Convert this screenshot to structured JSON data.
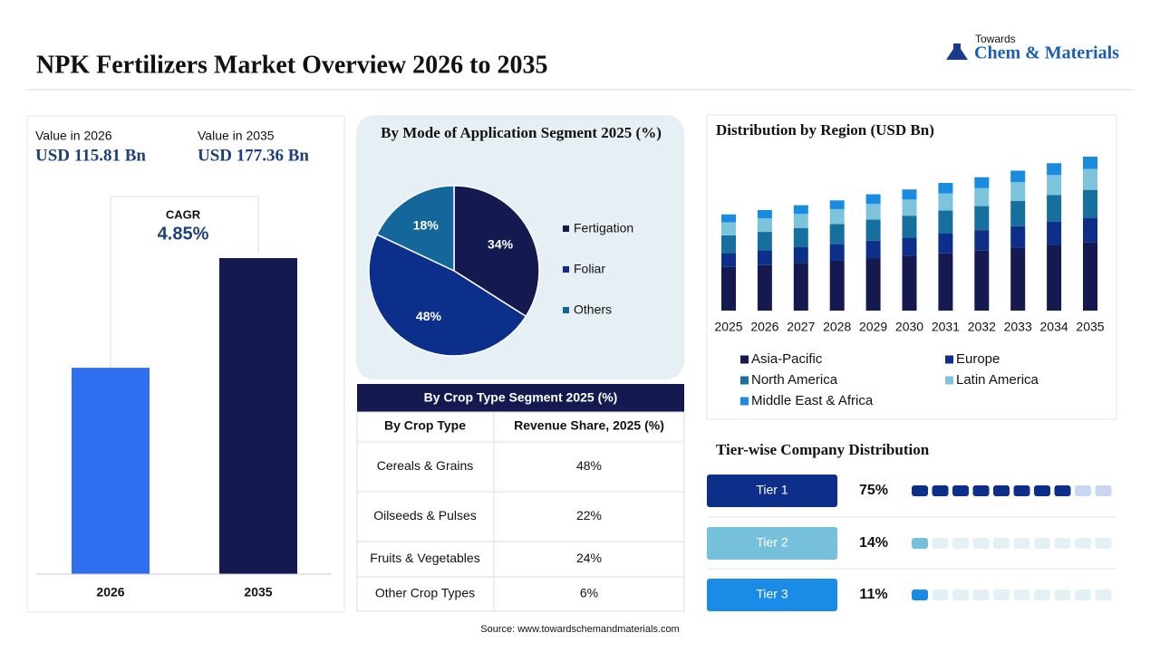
{
  "header": {
    "title": "NPK Fertilizers Market Overview 2026 to 2035",
    "logo_top": "Towards",
    "logo_main": "Chem & Materials"
  },
  "chart_data": [
    {
      "type": "bar",
      "categories": [
        "2026",
        "2035"
      ],
      "values": [
        115.81,
        177.36
      ],
      "colors": [
        "#2f6fef",
        "#141a4f"
      ],
      "value_captions": [
        "Value in 2026",
        "Value in 2035"
      ],
      "value_labels": [
        "USD 115.81 Bn",
        "USD 177.36 Bn"
      ],
      "annotation_title": "CAGR",
      "annotation": "4.85%"
    },
    {
      "type": "pie",
      "title": "By Mode of Application Segment 2025 (%)",
      "categories": [
        "Fertigation",
        "Foliar",
        "Others"
      ],
      "values": [
        34,
        48,
        18
      ],
      "value_labels": [
        "34%",
        "48%",
        "18%"
      ],
      "colors": [
        "#141a4f",
        "#0b2f8a",
        "#13679a"
      ]
    },
    {
      "type": "stacked-bar",
      "title": "Distribution by Region (USD Bn)",
      "categories": [
        "2025",
        "2026",
        "2027",
        "2028",
        "2029",
        "2030",
        "2031",
        "2032",
        "2033",
        "2034",
        "2035"
      ],
      "series": [
        {
          "name": "Asia-Pacific",
          "color": "#141a4f",
          "values": [
            50,
            52,
            54.5,
            57,
            60,
            62.5,
            65.5,
            68.5,
            71.5,
            75,
            78
          ]
        },
        {
          "name": "Europe",
          "color": "#0d2f8a",
          "values": [
            16,
            17,
            18,
            19,
            20,
            21,
            22.5,
            23.5,
            25,
            26.5,
            28
          ]
        },
        {
          "name": "North America",
          "color": "#176f9e",
          "values": [
            20,
            21,
            22,
            23,
            24,
            25,
            26.5,
            27.5,
            29,
            30.5,
            32
          ]
        },
        {
          "name": "Latin America",
          "color": "#7ec3dc",
          "values": [
            15,
            15.5,
            16,
            17,
            18,
            18.5,
            19.5,
            20.5,
            21.5,
            23,
            24
          ]
        },
        {
          "name": "Middle East & Africa",
          "color": "#1a8ce0",
          "values": [
            9,
            9.5,
            10,
            10,
            11,
            11.5,
            12,
            12.5,
            13,
            13.5,
            14
          ]
        }
      ]
    }
  ],
  "table": {
    "title": "By Crop Type Segment 2025 (%)",
    "header": [
      "By Crop Type",
      "Revenue Share, 2025 (%)"
    ],
    "rows": [
      [
        "Cereals & Grains",
        "48%"
      ],
      [
        "Oilseeds & Pulses",
        "22%"
      ],
      [
        "Fruits & Vegetables",
        "24%"
      ],
      [
        "Other Crop Types",
        "6%"
      ]
    ]
  },
  "tiers": {
    "title": "Tier-wise Company Distribution",
    "items": [
      {
        "name": "Tier 1",
        "value": 75,
        "label": "75%",
        "color": "#0d2f8a"
      },
      {
        "name": "Tier 2",
        "value": 14,
        "label": "14%",
        "color": "#76c0dc"
      },
      {
        "name": "Tier 3",
        "value": 11,
        "label": "11%",
        "color": "#1a8ce8"
      }
    ]
  },
  "source": "Source: www.towardschemandmaterials.com"
}
